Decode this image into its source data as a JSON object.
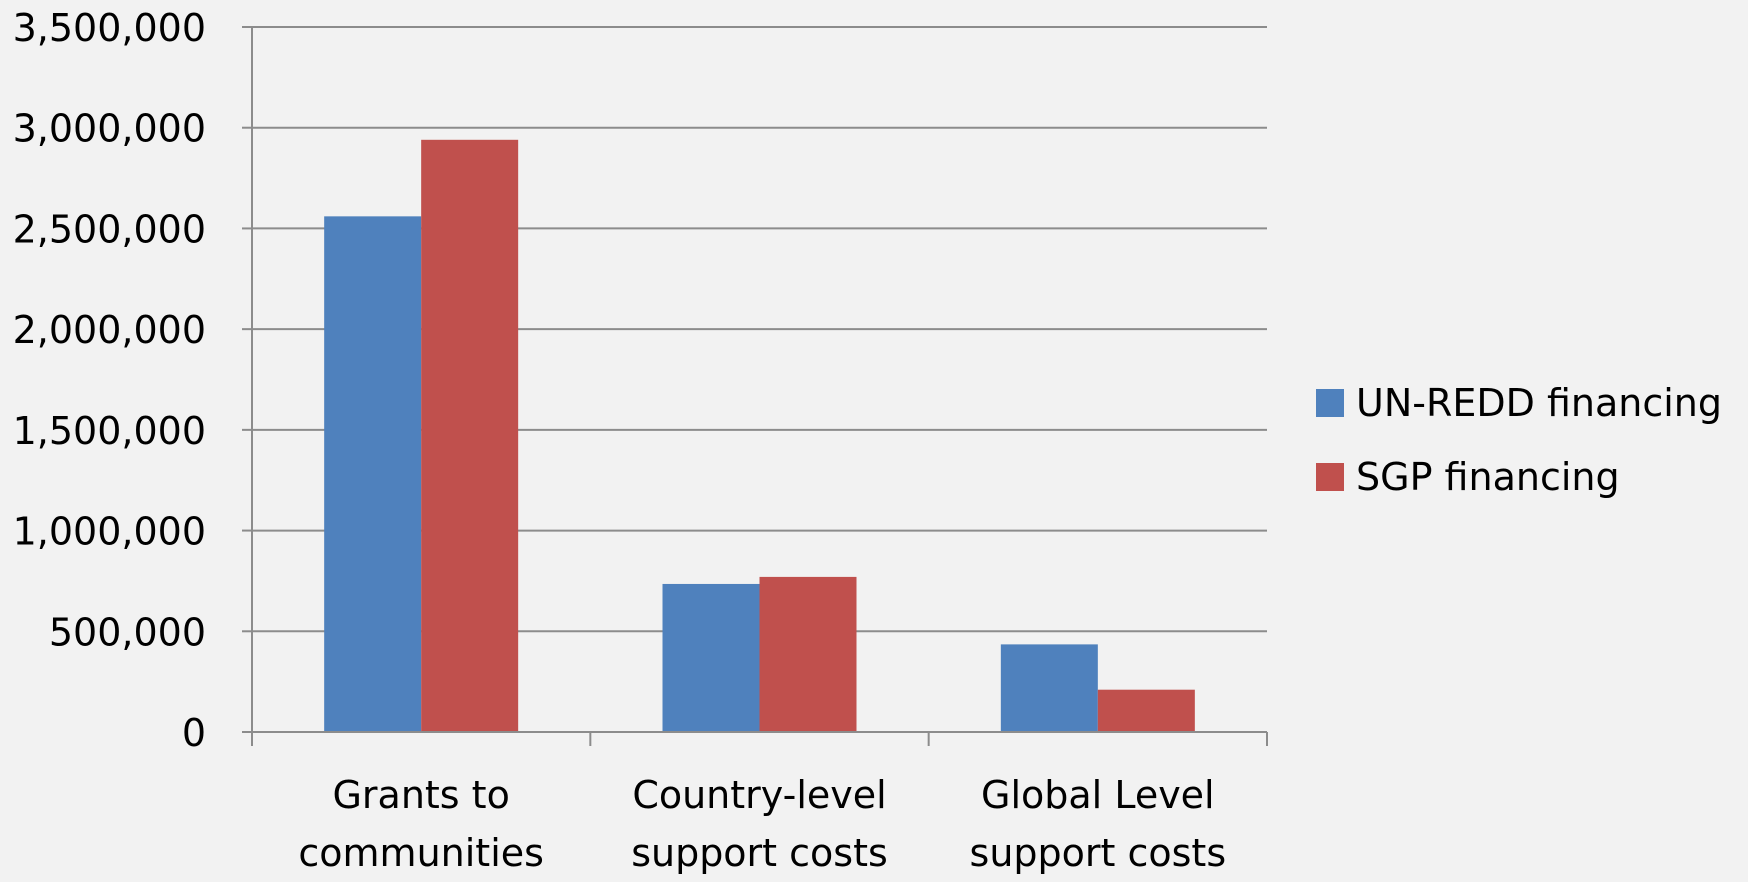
{
  "chart_data": {
    "type": "bar",
    "title": "",
    "xlabel": "",
    "ylabel": "",
    "categories": [
      [
        "Grants to",
        "communities"
      ],
      [
        "Country-level",
        "support costs"
      ],
      [
        "Global Level",
        "support costs"
      ]
    ],
    "series": [
      {
        "name": "UN-REDD financing",
        "color": "#4f81bd",
        "values": [
          2560000,
          735000,
          435000
        ]
      },
      {
        "name": "SGP financing",
        "color": "#c0504d",
        "values": [
          2940000,
          770000,
          210000
        ]
      }
    ],
    "ylim": [
      0,
      3500000
    ],
    "yticks": [
      0,
      500000,
      1000000,
      1500000,
      2000000,
      2500000,
      3000000,
      3500000
    ],
    "ytick_labels": [
      "0",
      "500,000",
      "1,000,000",
      "1,500,000",
      "2,000,000",
      "2,500,000",
      "3,000,000",
      "3,500,000"
    ],
    "grid": true,
    "legend": "right",
    "colors": {
      "gridline": "#8c8c8c",
      "axis": "#8c8c8c",
      "background": "#f2f2f2"
    }
  }
}
